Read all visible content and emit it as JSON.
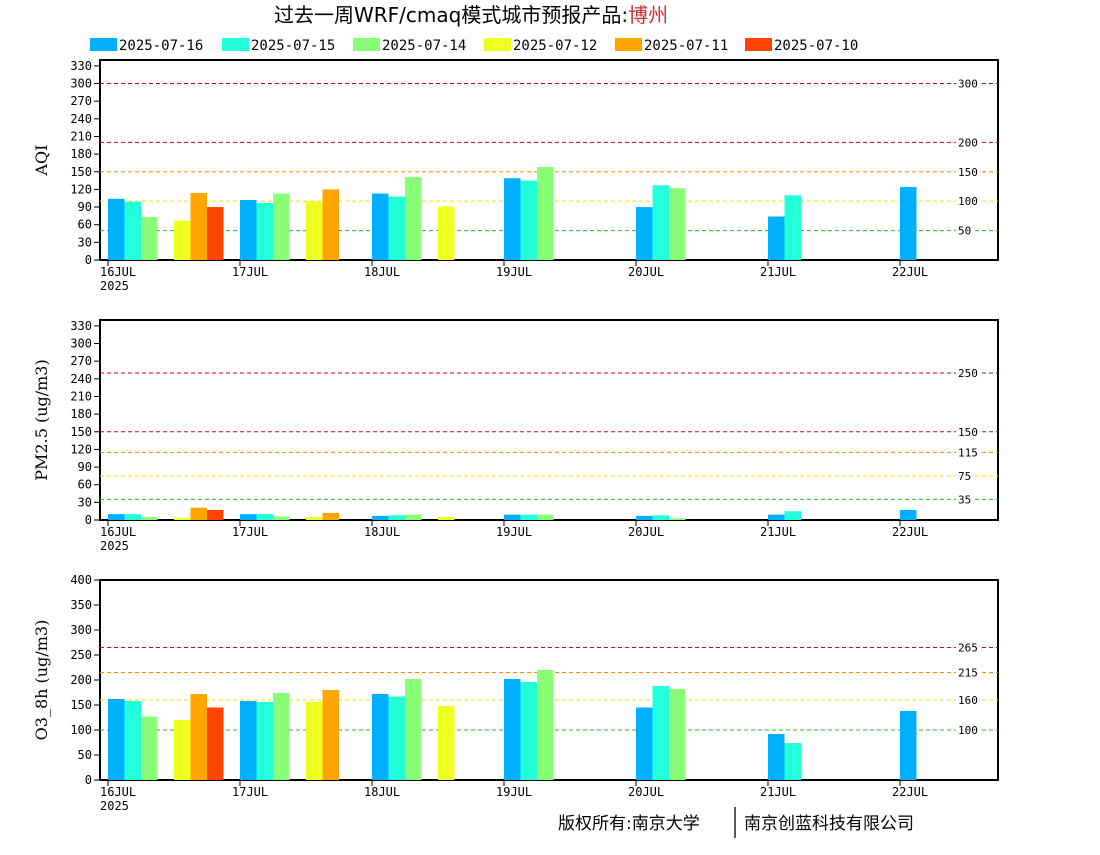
{
  "title": {
    "main": "过去一周WRF/cmaq模式城市预报产品:",
    "city": "博州"
  },
  "copyright": {
    "left": "版权所有:南京大学",
    "right": "南京创蓝科技有限公司"
  },
  "colors": {
    "2025-07-16": "#00b0ff",
    "2025-07-15": "#22ffd9",
    "2025-07-14": "#88ff77",
    "2025-07-12": "#eeff22",
    "2025-07-11": "#ffa500",
    "2025-07-10": "#ff4400",
    "thr_red": "#cc0033",
    "thr_orange": "#ff8800",
    "thr_yellow": "#e6e600",
    "thr_green": "#22bb22"
  },
  "chart_data": [
    {
      "type": "bar",
      "ylabel": "AQI",
      "ylim": [
        0,
        340
      ],
      "yticks": [
        0,
        30,
        60,
        90,
        120,
        150,
        180,
        210,
        240,
        270,
        300,
        330
      ],
      "x_ticks": [
        "16JUL",
        "17JUL",
        "18JUL",
        "19JUL",
        "20JUL",
        "21JUL",
        "22JUL"
      ],
      "x_year": "2025",
      "legend": [
        "2025-07-16",
        "2025-07-15",
        "2025-07-14",
        "2025-07-12",
        "2025-07-11",
        "2025-07-10"
      ],
      "thresholds": [
        {
          "value": 300,
          "label": "300",
          "color": "red"
        },
        {
          "value": 200,
          "label": "200",
          "color": "red"
        },
        {
          "value": 150,
          "label": "150",
          "color": "orange"
        },
        {
          "value": 100,
          "label": "100",
          "color": "yellow"
        },
        {
          "value": 50,
          "label": "50",
          "color": "green"
        }
      ],
      "series": [
        {
          "name": "2025-07-16",
          "points": [
            [
              0,
              104
            ],
            [
              1,
              102
            ],
            [
              2,
              113
            ],
            [
              3,
              139
            ],
            [
              4,
              90
            ],
            [
              5,
              74
            ],
            [
              6,
              124
            ]
          ]
        },
        {
          "name": "2025-07-15",
          "points": [
            [
              0,
              99
            ],
            [
              1,
              97
            ],
            [
              2,
              108
            ],
            [
              3,
              135
            ],
            [
              4,
              127
            ],
            [
              5,
              110
            ]
          ]
        },
        {
          "name": "2025-07-14",
          "points": [
            [
              0,
              73
            ],
            [
              1,
              113
            ],
            [
              2,
              141
            ],
            [
              3,
              158
            ],
            [
              4,
              122
            ]
          ]
        },
        {
          "name": "2025-07-12",
          "points": [
            [
              0,
              67
            ],
            [
              1,
              100
            ],
            [
              2,
              91
            ]
          ]
        },
        {
          "name": "2025-07-11",
          "points": [
            [
              0,
              114
            ],
            [
              1,
              120
            ]
          ]
        },
        {
          "name": "2025-07-10",
          "points": [
            [
              0,
              90
            ]
          ]
        }
      ]
    },
    {
      "type": "bar",
      "ylabel": "PM2.5 (ug/m3)",
      "ylim": [
        0,
        340
      ],
      "yticks": [
        0,
        30,
        60,
        90,
        120,
        150,
        180,
        210,
        240,
        270,
        300,
        330
      ],
      "x_ticks": [
        "16JUL",
        "17JUL",
        "18JUL",
        "19JUL",
        "20JUL",
        "21JUL",
        "22JUL"
      ],
      "x_year": "2025",
      "thresholds": [
        {
          "value": 250,
          "label": "250",
          "color": "red"
        },
        {
          "value": 150,
          "label": "150",
          "color": "red"
        },
        {
          "value": 115,
          "label": "115",
          "color": "orange"
        },
        {
          "value": 75,
          "label": "75",
          "color": "yellow"
        },
        {
          "value": 35,
          "label": "35",
          "color": "green"
        }
      ],
      "series": [
        {
          "name": "2025-07-16",
          "points": [
            [
              0,
              10
            ],
            [
              1,
              10
            ],
            [
              2,
              7
            ],
            [
              3,
              9
            ],
            [
              4,
              7
            ],
            [
              5,
              9
            ],
            [
              6,
              17
            ]
          ]
        },
        {
          "name": "2025-07-15",
          "points": [
            [
              0,
              10
            ],
            [
              1,
              10
            ],
            [
              2,
              8
            ],
            [
              3,
              9
            ],
            [
              4,
              8
            ],
            [
              5,
              15
            ]
          ]
        },
        {
          "name": "2025-07-14",
          "points": [
            [
              0,
              5
            ],
            [
              1,
              6
            ],
            [
              2,
              9
            ],
            [
              3,
              9
            ],
            [
              4,
              3
            ]
          ]
        },
        {
          "name": "2025-07-12",
          "points": [
            [
              0,
              4
            ],
            [
              1,
              5
            ],
            [
              2,
              5
            ]
          ]
        },
        {
          "name": "2025-07-11",
          "points": [
            [
              0,
              21
            ],
            [
              1,
              12
            ]
          ]
        },
        {
          "name": "2025-07-10",
          "points": [
            [
              0,
              17
            ]
          ]
        }
      ]
    },
    {
      "type": "bar",
      "ylabel": "O3_8h (ug/m3)",
      "ylim": [
        0,
        400
      ],
      "yticks": [
        0,
        50,
        100,
        150,
        200,
        250,
        300,
        350,
        400
      ],
      "x_ticks": [
        "16JUL",
        "17JUL",
        "18JUL",
        "19JUL",
        "20JUL",
        "21JUL",
        "22JUL"
      ],
      "x_year": "2025",
      "thresholds": [
        {
          "value": 265,
          "label": "265",
          "color": "red"
        },
        {
          "value": 215,
          "label": "215",
          "color": "orange"
        },
        {
          "value": 160,
          "label": "160",
          "color": "yellow"
        },
        {
          "value": 100,
          "label": "100",
          "color": "green"
        }
      ],
      "series": [
        {
          "name": "2025-07-16",
          "points": [
            [
              0,
              162
            ],
            [
              1,
              158
            ],
            [
              2,
              172
            ],
            [
              3,
              202
            ],
            [
              4,
              145
            ],
            [
              5,
              92
            ],
            [
              6,
              138
            ]
          ]
        },
        {
          "name": "2025-07-15",
          "points": [
            [
              0,
              158
            ],
            [
              1,
              156
            ],
            [
              2,
              167
            ],
            [
              3,
              196
            ],
            [
              4,
              188
            ],
            [
              5,
              74
            ]
          ]
        },
        {
          "name": "2025-07-14",
          "points": [
            [
              0,
              127
            ],
            [
              1,
              174
            ],
            [
              2,
              202
            ],
            [
              3,
              220
            ],
            [
              4,
              182
            ]
          ]
        },
        {
          "name": "2025-07-12",
          "points": [
            [
              0,
              120
            ],
            [
              1,
              156
            ],
            [
              2,
              148
            ]
          ]
        },
        {
          "name": "2025-07-11",
          "points": [
            [
              0,
              172
            ],
            [
              1,
              180
            ]
          ]
        },
        {
          "name": "2025-07-10",
          "points": [
            [
              0,
              145
            ]
          ]
        }
      ]
    }
  ]
}
